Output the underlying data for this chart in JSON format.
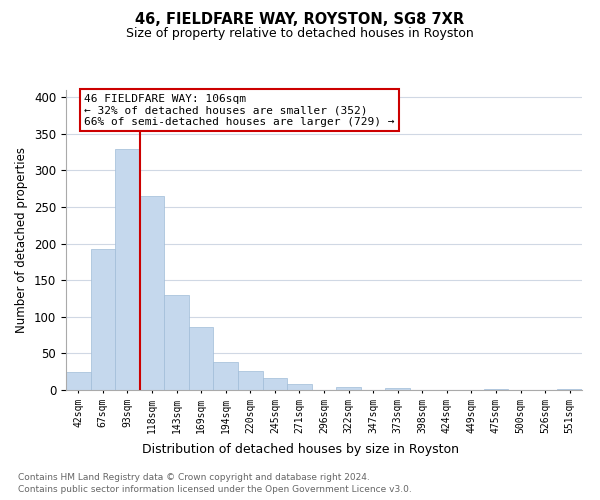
{
  "title": "46, FIELDFARE WAY, ROYSTON, SG8 7XR",
  "subtitle": "Size of property relative to detached houses in Royston",
  "xlabel": "Distribution of detached houses by size in Royston",
  "ylabel": "Number of detached properties",
  "bar_labels": [
    "42sqm",
    "67sqm",
    "93sqm",
    "118sqm",
    "143sqm",
    "169sqm",
    "194sqm",
    "220sqm",
    "245sqm",
    "271sqm",
    "296sqm",
    "322sqm",
    "347sqm",
    "373sqm",
    "398sqm",
    "424sqm",
    "449sqm",
    "475sqm",
    "500sqm",
    "526sqm",
    "551sqm"
  ],
  "bar_values": [
    25,
    193,
    330,
    265,
    130,
    86,
    38,
    26,
    17,
    8,
    0,
    4,
    0,
    3,
    0,
    0,
    0,
    2,
    0,
    0,
    2
  ],
  "bar_color": "#c5d8ed",
  "bar_edge_color": "#a0bcd8",
  "ylim": [
    0,
    410
  ],
  "yticks": [
    0,
    50,
    100,
    150,
    200,
    250,
    300,
    350,
    400
  ],
  "property_line_color": "#cc0000",
  "annotation_line1": "46 FIELDFARE WAY: 106sqm",
  "annotation_line2": "← 32% of detached houses are smaller (352)",
  "annotation_line3": "66% of semi-detached houses are larger (729) →",
  "annotation_box_color": "#ffffff",
  "annotation_box_edge": "#cc0000",
  "footer_line1": "Contains HM Land Registry data © Crown copyright and database right 2024.",
  "footer_line2": "Contains public sector information licensed under the Open Government Licence v3.0.",
  "background_color": "#ffffff",
  "grid_color": "#d0d8e4"
}
